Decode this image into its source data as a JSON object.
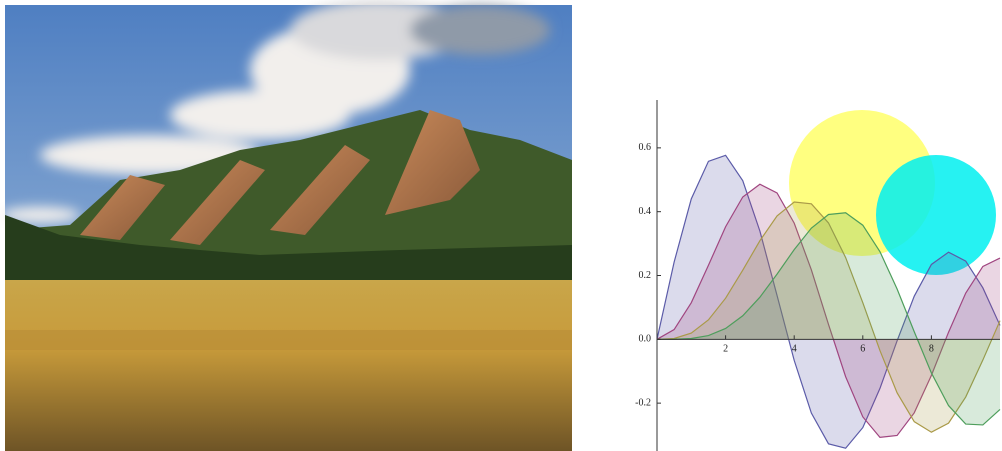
{
  "chart_data": {
    "type": "area",
    "x": [
      0,
      0.5,
      1,
      1.5,
      2,
      2.5,
      3,
      3.5,
      4,
      4.5,
      5,
      5.5,
      6,
      6.5,
      7,
      7.5,
      8,
      8.5,
      9,
      9.5,
      10
    ],
    "series": [
      {
        "color": "#5b5ba8",
        "values": [
          0,
          0.2423,
          0.4401,
          0.5579,
          0.5767,
          0.4971,
          0.3391,
          0.1374,
          -0.066,
          -0.2311,
          -0.3276,
          -0.3414,
          -0.2767,
          -0.1538,
          -0.0047,
          0.1352,
          0.2346,
          0.2731,
          0.2453,
          0.1613,
          0.0435
        ]
      },
      {
        "color": "#a04680",
        "values": [
          0,
          0.0306,
          0.1149,
          0.2321,
          0.3528,
          0.4461,
          0.4861,
          0.4586,
          0.3641,
          0.2178,
          0.0466,
          -0.1173,
          -0.2429,
          -0.3074,
          -0.3014,
          -0.2303,
          -0.113,
          0.0223,
          0.1448,
          0.2284,
          0.2546
        ]
      },
      {
        "color": "#aa9a48",
        "values": [
          0,
          0.0026,
          0.0196,
          0.061,
          0.1289,
          0.2166,
          0.3091,
          0.3868,
          0.4302,
          0.4247,
          0.3648,
          0.2561,
          0.1148,
          -0.0353,
          -0.1676,
          -0.2581,
          -0.2911,
          -0.2626,
          -0.1809,
          -0.065,
          0.0584
        ]
      },
      {
        "color": "#4e9e5c",
        "values": [
          0,
          0.0002,
          0.0025,
          0.0118,
          0.034,
          0.0738,
          0.132,
          0.2044,
          0.2811,
          0.3484,
          0.3912,
          0.3967,
          0.3576,
          0.2748,
          0.1578,
          0.0238,
          -0.1054,
          -0.2077,
          -0.2655,
          -0.2683,
          -0.2196
        ]
      }
    ],
    "xlim": [
      0,
      10
    ],
    "ylim": [
      -0.35,
      0.75
    ],
    "xticks": [
      2,
      4,
      6,
      8
    ],
    "yticks": [
      -0.2,
      {
        "value": 0,
        "label": "0.0"
      },
      0.2,
      0.4,
      0.6
    ]
  }
}
